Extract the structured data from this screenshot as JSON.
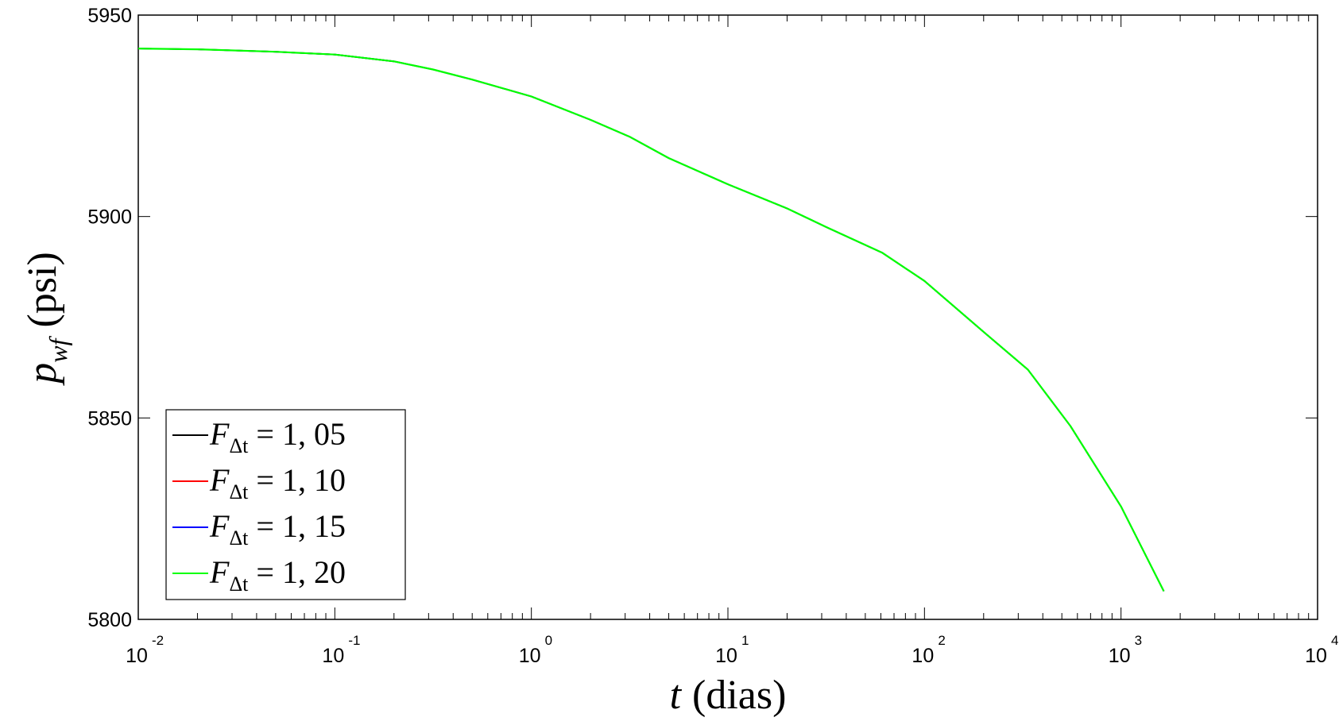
{
  "chart_data": {
    "type": "line",
    "title": "",
    "xlabel": {
      "symbol": "t",
      "text": "(dias)"
    },
    "ylabel": {
      "symbol": "p",
      "subscript": "wf",
      "text": "(psi)"
    },
    "xscale": "log",
    "xlim": [
      0.01,
      10000
    ],
    "ylim": [
      5800,
      5950
    ],
    "grid": false,
    "legend_position": "bottom-left",
    "x_ticks": [
      {
        "base": "10",
        "exp": "-2",
        "value": 0.01
      },
      {
        "base": "10",
        "exp": "-1",
        "value": 0.1
      },
      {
        "base": "10",
        "exp": "0",
        "value": 1
      },
      {
        "base": "10",
        "exp": "1",
        "value": 10
      },
      {
        "base": "10",
        "exp": "2",
        "value": 100
      },
      {
        "base": "10",
        "exp": "3",
        "value": 1000
      },
      {
        "base": "10",
        "exp": "4",
        "value": 10000
      }
    ],
    "y_ticks": [
      "5800",
      "5850",
      "5900",
      "5950"
    ],
    "x": [
      0.01,
      0.02,
      0.05,
      0.1,
      0.2,
      0.316,
      0.5,
      1,
      2,
      3.16,
      5,
      10,
      20,
      31.6,
      61,
      100,
      204,
      336,
      553,
      1000,
      1650
    ],
    "series": [
      {
        "name": {
          "symbol": "F",
          "subscript": "Δt",
          "value": "= 1, 05"
        },
        "color": "#000000",
        "values": [
          5941.7,
          5941.5,
          5940.9,
          5940.2,
          5938.5,
          5936.5,
          5934,
          5929.8,
          5924,
          5919.8,
          5914.5,
          5908,
          5902,
          5897.4,
          5891,
          5884,
          5871,
          5862,
          5848,
          5828,
          5807
        ]
      },
      {
        "name": {
          "symbol": "F",
          "subscript": "Δt",
          "value": "= 1, 10"
        },
        "color": "#ff0000",
        "values": [
          5941.7,
          5941.5,
          5940.9,
          5940.2,
          5938.5,
          5936.5,
          5934,
          5929.8,
          5924,
          5919.8,
          5914.5,
          5908,
          5902,
          5897.4,
          5891,
          5884,
          5871,
          5862,
          5848,
          5828,
          5807
        ]
      },
      {
        "name": {
          "symbol": "F",
          "subscript": "Δt",
          "value": "= 1, 15"
        },
        "color": "#0000ff",
        "values": [
          5941.7,
          5941.5,
          5940.9,
          5940.2,
          5938.5,
          5936.5,
          5934,
          5929.8,
          5924,
          5919.8,
          5914.5,
          5908,
          5902,
          5897.4,
          5891,
          5884,
          5871,
          5862,
          5848,
          5828,
          5807
        ]
      },
      {
        "name": {
          "symbol": "F",
          "subscript": "Δt",
          "value": "= 1, 20"
        },
        "color": "#00ff00",
        "values": [
          5941.7,
          5941.5,
          5940.9,
          5940.2,
          5938.5,
          5936.5,
          5934,
          5929.8,
          5924,
          5919.8,
          5914.5,
          5908,
          5902,
          5897.4,
          5891,
          5884,
          5871,
          5862,
          5848,
          5828,
          5807
        ]
      }
    ]
  }
}
